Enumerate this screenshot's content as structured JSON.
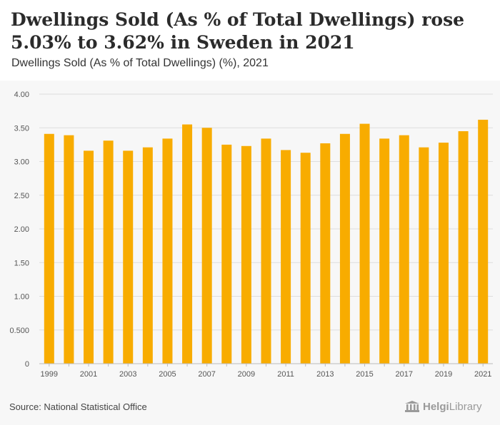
{
  "header": {
    "title": "Dwellings Sold (As % of Total Dwellings) rose 5.03% to 3.62% in Sweden in 2021",
    "subtitle": "Dwellings Sold (As % of Total Dwellings) (%), 2021"
  },
  "footer": {
    "source": "Source: National Statistical Office",
    "logo_text_bold": "Helgi",
    "logo_text_light": "Library"
  },
  "colors": {
    "bar": "#f8ac00",
    "grid": "#dddddd",
    "tick_text": "#555555"
  },
  "chart_data": {
    "type": "bar",
    "categories": [
      "1999",
      "2000",
      "2001",
      "2002",
      "2003",
      "2004",
      "2005",
      "2006",
      "2007",
      "2008",
      "2009",
      "2010",
      "2011",
      "2012",
      "2013",
      "2014",
      "2015",
      "2016",
      "2017",
      "2018",
      "2019",
      "2020",
      "2021"
    ],
    "values": [
      3.41,
      3.39,
      3.16,
      3.31,
      3.16,
      3.21,
      3.34,
      3.55,
      3.5,
      3.25,
      3.23,
      3.34,
      3.17,
      3.13,
      3.27,
      3.41,
      3.56,
      3.34,
      3.39,
      3.21,
      3.28,
      3.45,
      3.62
    ],
    "x_tick_labels": [
      "1999",
      "2001",
      "2003",
      "2005",
      "2007",
      "2009",
      "2011",
      "2013",
      "2015",
      "2017",
      "2019",
      "2021"
    ],
    "y_ticks": [
      0,
      0.5,
      1.0,
      1.5,
      2.0,
      2.5,
      3.0,
      3.5,
      4.0
    ],
    "y_tick_labels": [
      "0",
      "0.500",
      "1.00",
      "1.50",
      "2.00",
      "2.50",
      "3.00",
      "3.50",
      "4.00"
    ],
    "ylim": [
      0,
      4.0
    ],
    "grid": true,
    "legend": "none"
  }
}
